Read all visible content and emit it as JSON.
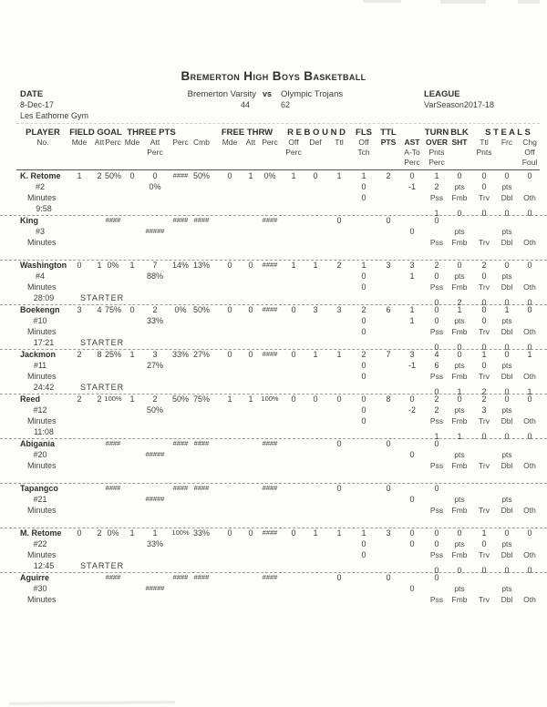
{
  "title": "Bremerton High Boys Basketball",
  "meta": {
    "date_label": "DATE",
    "date": "8-Dec-17",
    "venue": "Les Eathorne Gym",
    "home_team": "Bremerton Varsity",
    "vs": "vs",
    "away_team": "Olympic Trojans",
    "home_score": "44",
    "away_score": "62",
    "league_label": "LEAGUE",
    "league": "VarSeason2017-18"
  },
  "header": {
    "player": "PLAYER",
    "no": "No.",
    "field_goal": "FIELD GOAL",
    "three_pts": "THREE PTS",
    "free_thrw": "FREE THRW",
    "rebound": "R E B O U N D",
    "fls": "FLS",
    "ttl": "TTL",
    "turn": "TURN",
    "blk": "BLK",
    "steals": "S T E A L S",
    "mde": "Mde",
    "att": "Att",
    "perc": "Perc",
    "cmb": "Cmb",
    "off": "Off",
    "def": "Def",
    "ttl_s": "Ttl",
    "pts": "PTS",
    "ast": "AST",
    "over": "OVER",
    "sht": "SHT",
    "frc": "Frc",
    "chg": "Chg",
    "tch": "Tch",
    "a_to": "A-To",
    "pnts": "Pnts",
    "foul": "Foul"
  },
  "row_labels": {
    "pts": "pts",
    "pss": "Pss",
    "fmb": "Fmb",
    "trv": "Trv",
    "dbl": "Dbl",
    "oth": "Oth",
    "minutes": "Minutes",
    "starter": "STARTER"
  },
  "players": [
    {
      "name": "K. Retome",
      "number": "#2",
      "minutes": "9:58",
      "starter": false,
      "fg_m": "1",
      "fg_a": "2",
      "fg_pct": "50%",
      "tp_m": "0",
      "tp_a": "0",
      "tp_pct": "####",
      "cmb": "50%",
      "tp_att_pct": "0%",
      "ft_m": "0",
      "ft_a": "1",
      "ft_pct": "0%",
      "rb_off": "1",
      "rb_def": "0",
      "rb_ttl": "1",
      "fls": "1",
      "fls_tch": "0",
      "fls_3": "0",
      "pts": "2",
      "ast": "0",
      "a_to": "-1",
      "to": "1",
      "to_pnts": "2",
      "blk": "0",
      "st_ttl": "0",
      "st_pnts": "0",
      "st_frc": "0",
      "st_chg": "0",
      "to_types": [
        "1",
        "0",
        "0",
        "0",
        "0"
      ]
    },
    {
      "name": "King",
      "number": "#3",
      "starter": false,
      "fg_pct": "####",
      "tp_pct": "####",
      "cmb": "####",
      "tp_att_pct": "#####",
      "ft_pct": "####",
      "rb_ttl": "0",
      "pts": "0",
      "to": "0",
      "a_to": "0"
    },
    {
      "name": "Washington",
      "number": "#4",
      "minutes": "28:09",
      "starter": true,
      "fg_m": "0",
      "fg_a": "1",
      "fg_pct": "0%",
      "tp_m": "1",
      "tp_a": "7",
      "tp_pct": "14%",
      "cmb": "13%",
      "tp_att_pct": "88%",
      "ft_m": "0",
      "ft_a": "0",
      "ft_pct": "####",
      "rb_off": "1",
      "rb_def": "1",
      "rb_ttl": "2",
      "fls": "1",
      "fls_tch": "0",
      "fls_3": "0",
      "pts": "3",
      "ast": "3",
      "a_to": "1",
      "to": "2",
      "to_pnts": "0",
      "blk": "0",
      "st_ttl": "2",
      "st_pnts": "0",
      "st_frc": "0",
      "st_chg": "0",
      "to_types": [
        "0",
        "2",
        "0",
        "0",
        "0"
      ]
    },
    {
      "name": "Boekengn",
      "number": "#10",
      "minutes": "17:21",
      "starter": true,
      "fg_m": "3",
      "fg_a": "4",
      "fg_pct": "75%",
      "tp_m": "0",
      "tp_a": "2",
      "tp_pct": "0%",
      "cmb": "50%",
      "tp_att_pct": "33%",
      "ft_m": "0",
      "ft_a": "0",
      "ft_pct": "####",
      "rb_off": "0",
      "rb_def": "3",
      "rb_ttl": "3",
      "fls": "2",
      "fls_tch": "0",
      "fls_3": "0",
      "pts": "6",
      "ast": "1",
      "a_to": "1",
      "to": "0",
      "to_pnts": "0",
      "blk": "1",
      "st_ttl": "0",
      "st_pnts": "0",
      "st_frc": "1",
      "st_chg": "0",
      "to_types": [
        "0",
        "0",
        "0",
        "0",
        "0"
      ]
    },
    {
      "name": "Jackmon",
      "number": "#11",
      "minutes": "24:42",
      "starter": true,
      "fg_m": "2",
      "fg_a": "8",
      "fg_pct": "25%",
      "tp_m": "1",
      "tp_a": "3",
      "tp_pct": "33%",
      "cmb": "27%",
      "tp_att_pct": "27%",
      "ft_m": "0",
      "ft_a": "0",
      "ft_pct": "####",
      "rb_off": "0",
      "rb_def": "1",
      "rb_ttl": "1",
      "fls": "2",
      "fls_tch": "0",
      "fls_3": "0",
      "pts": "7",
      "ast": "3",
      "a_to": "-1",
      "to": "4",
      "to_pnts": "6",
      "blk": "0",
      "st_ttl": "1",
      "st_pnts": "0",
      "st_frc": "0",
      "st_chg": "1",
      "to_types": [
        "0",
        "1",
        "2",
        "0",
        "1"
      ]
    },
    {
      "name": "Reed",
      "number": "#12",
      "minutes": "11:08",
      "starter": false,
      "fg_m": "2",
      "fg_a": "2",
      "fg_pct": "100%",
      "tp_m": "1",
      "tp_a": "2",
      "tp_pct": "50%",
      "cmb": "75%",
      "tp_att_pct": "50%",
      "ft_m": "1",
      "ft_a": "1",
      "ft_pct": "100%",
      "rb_off": "0",
      "rb_def": "0",
      "rb_ttl": "0",
      "fls": "0",
      "fls_tch": "0",
      "fls_3": "0",
      "pts": "8",
      "ast": "0",
      "a_to": "-2",
      "to": "2",
      "to_pnts": "2",
      "blk": "0",
      "st_ttl": "2",
      "st_pnts": "3",
      "st_frc": "0",
      "st_chg": "0",
      "to_types": [
        "1",
        "1",
        "0",
        "0",
        "0"
      ]
    },
    {
      "name": "Abigania",
      "number": "#20",
      "starter": false,
      "fg_pct": "####",
      "tp_pct": "####",
      "cmb": "####",
      "tp_att_pct": "#####",
      "ft_pct": "####",
      "rb_ttl": "0",
      "pts": "0",
      "to": "0",
      "a_to": "0"
    },
    {
      "name": "Tapangco",
      "number": "#21",
      "starter": false,
      "fg_pct": "####",
      "tp_pct": "####",
      "cmb": "####",
      "tp_att_pct": "#####",
      "ft_pct": "####",
      "rb_ttl": "0",
      "pts": "0",
      "to": "0",
      "a_to": "0"
    },
    {
      "name": "M. Retome",
      "number": "#22",
      "minutes": "12:45",
      "starter": true,
      "fg_m": "0",
      "fg_a": "2",
      "fg_pct": "0%",
      "tp_m": "1",
      "tp_a": "1",
      "tp_pct": "100%",
      "cmb": "33%",
      "tp_att_pct": "33%",
      "ft_m": "0",
      "ft_a": "0",
      "ft_pct": "####",
      "rb_off": "0",
      "rb_def": "1",
      "rb_ttl": "1",
      "fls": "1",
      "fls_tch": "0",
      "fls_3": "0",
      "pts": "3",
      "ast": "0",
      "a_to": "0",
      "to": "0",
      "to_pnts": "0",
      "blk": "0",
      "st_ttl": "1",
      "st_pnts": "0",
      "st_frc": "0",
      "st_chg": "0",
      "to_types": [
        "0",
        "0",
        "0",
        "0",
        "0"
      ]
    },
    {
      "name": "Aguirre",
      "number": "#30",
      "starter": false,
      "fg_pct": "####",
      "tp_pct": "####",
      "cmb": "####",
      "tp_att_pct": "#####",
      "ft_pct": "####",
      "rb_ttl": "0",
      "pts": "0",
      "to": "0",
      "a_to": "0"
    }
  ]
}
